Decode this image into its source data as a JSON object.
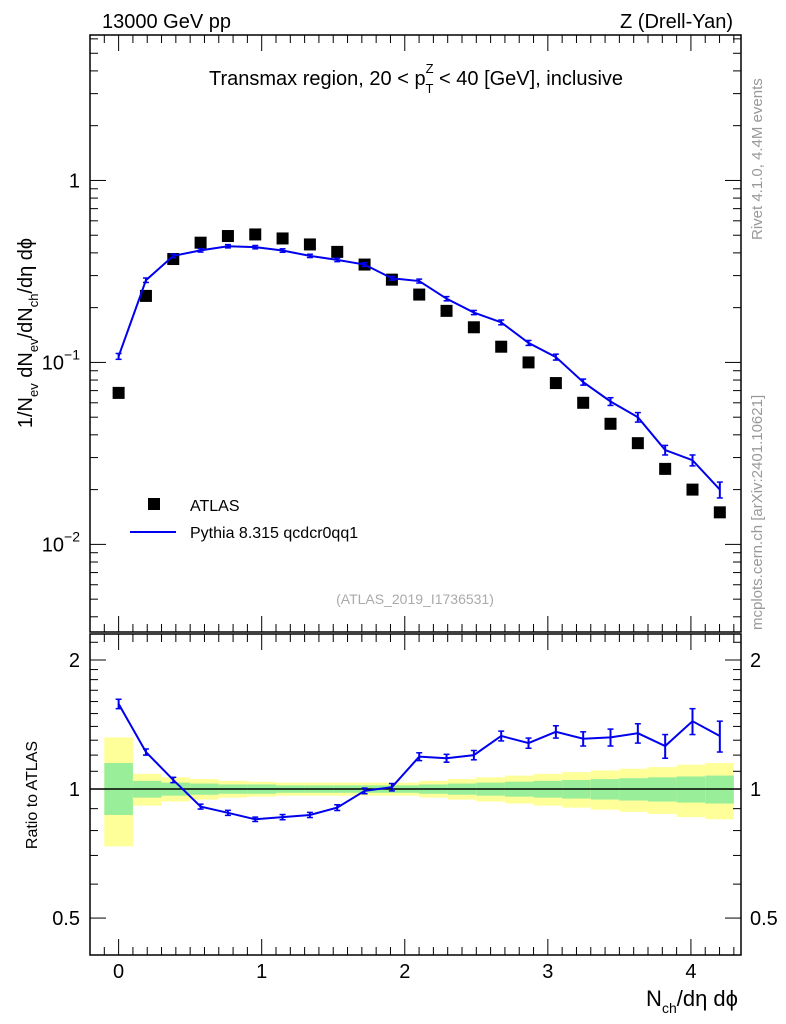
{
  "header": {
    "left": "13000 GeV pp",
    "right": "Z (Drell-Yan)"
  },
  "side_text": {
    "rivet": "Rivet 4.1.0,  4.4M events",
    "mcplots": "mcplots.cern.ch [arXiv:2401.10621]"
  },
  "chart_data": [
    {
      "type": "scatter",
      "panel": "main",
      "title": "Transmax region, 20 < p_T^Z < 40 [GeV], inclusive",
      "title_parts": {
        "pre": "Transmax region, 20 < p",
        "sup": "Z",
        "sub": "T",
        "post": " < 40 [GeV], inclusive"
      },
      "ylabel": "1/N_ev dN_ev/dN_ch/dη dϕ",
      "ylabel_parts": {
        "a": "1/N",
        "a_sub": "ev",
        "b": " dN",
        "b_sub": "ev",
        "c": "/dN",
        "c_sub": "ch",
        "d": "/dη dϕ"
      },
      "yscale": "log",
      "xlim": [
        -0.2,
        4.35
      ],
      "ylim": [
        0.0033,
        6.3
      ],
      "yticks": [
        {
          "value": 1,
          "label": "1"
        },
        {
          "value": 0.1,
          "label": "10",
          "exp": "−1"
        },
        {
          "value": 0.01,
          "label": "10",
          "exp": "−2"
        }
      ],
      "watermark": "(ATLAS_2019_I1736531)",
      "legend": {
        "position": "lower-left",
        "entries": [
          "ATLAS",
          "Pythia 8.315 qcdcr0qq1"
        ]
      },
      "series": [
        {
          "name": "ATLAS",
          "marker": "square",
          "color": "#000000",
          "x": [
            0.0,
            0.191,
            0.382,
            0.573,
            0.764,
            0.955,
            1.146,
            1.337,
            1.528,
            1.719,
            1.91,
            2.101,
            2.292,
            2.483,
            2.674,
            2.865,
            3.056,
            3.247,
            3.438,
            3.629,
            3.82,
            4.011,
            4.202
          ],
          "y": [
            0.068,
            0.232,
            0.37,
            0.455,
            0.495,
            0.505,
            0.48,
            0.445,
            0.405,
            0.345,
            0.285,
            0.236,
            0.192,
            0.156,
            0.122,
            0.1,
            0.077,
            0.06,
            0.046,
            0.036,
            0.026,
            0.02,
            0.015
          ]
        },
        {
          "name": "Pythia 8.315 qcdcr0qq1",
          "marker": "line",
          "color": "#0000ee",
          "x": [
            0.0,
            0.191,
            0.382,
            0.573,
            0.764,
            0.955,
            1.146,
            1.337,
            1.528,
            1.719,
            1.91,
            2.101,
            2.292,
            2.483,
            2.674,
            2.865,
            3.056,
            3.247,
            3.438,
            3.629,
            3.82,
            4.011,
            4.202
          ],
          "y": [
            0.108,
            0.283,
            0.385,
            0.413,
            0.435,
            0.43,
            0.412,
            0.385,
            0.366,
            0.345,
            0.29,
            0.28,
            0.224,
            0.188,
            0.166,
            0.128,
            0.107,
            0.078,
            0.061,
            0.05,
            0.033,
            0.029,
            0.02
          ],
          "yerr": [
            0.004,
            0.008,
            0.009,
            0.009,
            0.009,
            0.009,
            0.009,
            0.008,
            0.008,
            0.008,
            0.007,
            0.007,
            0.006,
            0.005,
            0.005,
            0.004,
            0.004,
            0.003,
            0.003,
            0.003,
            0.002,
            0.002,
            0.002
          ]
        }
      ]
    },
    {
      "type": "line",
      "panel": "ratio",
      "ylabel": "Ratio to ATLAS",
      "xlabel": "N_ch/dη dϕ",
      "xlabel_parts": {
        "a": "N",
        "a_sub": "ch",
        "b": "/dη dϕ"
      },
      "xlim": [
        -0.2,
        4.35
      ],
      "ylim": [
        0.41,
        2.3
      ],
      "ylim_scale": "log",
      "yticks": [
        {
          "value": 0.5,
          "label": "0.5"
        },
        {
          "value": 1,
          "label": "1"
        },
        {
          "value": 2,
          "label": "2"
        }
      ],
      "xticks": [
        {
          "value": 0,
          "label": "0"
        },
        {
          "value": 1,
          "label": "1"
        },
        {
          "value": 2,
          "label": "2"
        },
        {
          "value": 3,
          "label": "3"
        },
        {
          "value": 4,
          "label": "4"
        }
      ],
      "reference_line": 1,
      "bands": {
        "edges": [
          -0.1,
          0.1,
          0.3,
          0.5,
          0.7,
          0.9,
          1.1,
          1.3,
          1.5,
          1.7,
          1.9,
          2.1,
          2.3,
          2.5,
          2.7,
          2.9,
          3.1,
          3.3,
          3.5,
          3.7,
          3.9,
          4.1,
          4.3
        ],
        "green_low": [
          0.87,
          0.955,
          0.965,
          0.97,
          0.975,
          0.975,
          0.98,
          0.98,
          0.98,
          0.98,
          0.98,
          0.975,
          0.97,
          0.965,
          0.96,
          0.955,
          0.95,
          0.945,
          0.94,
          0.935,
          0.93,
          0.925,
          0.92
        ],
        "green_high": [
          1.15,
          1.045,
          1.035,
          1.03,
          1.025,
          1.025,
          1.02,
          1.02,
          1.02,
          1.02,
          1.02,
          1.025,
          1.03,
          1.035,
          1.04,
          1.045,
          1.05,
          1.055,
          1.06,
          1.065,
          1.07,
          1.075,
          1.08
        ],
        "yellow_low": [
          0.735,
          0.915,
          0.935,
          0.945,
          0.955,
          0.96,
          0.965,
          0.965,
          0.965,
          0.965,
          0.965,
          0.955,
          0.945,
          0.935,
          0.925,
          0.915,
          0.905,
          0.895,
          0.885,
          0.875,
          0.86,
          0.85,
          0.835
        ],
        "yellow_high": [
          1.32,
          1.085,
          1.065,
          1.055,
          1.045,
          1.04,
          1.035,
          1.035,
          1.035,
          1.035,
          1.035,
          1.045,
          1.055,
          1.065,
          1.075,
          1.085,
          1.095,
          1.105,
          1.115,
          1.125,
          1.14,
          1.15,
          1.165
        ],
        "green_color": "#99ee99",
        "yellow_color": "#ffff99"
      },
      "series": [
        {
          "name": "Pythia 8.315 qcdcr0qq1 / ATLAS",
          "color": "#0000ee",
          "x": [
            0.0,
            0.191,
            0.382,
            0.573,
            0.764,
            0.955,
            1.146,
            1.337,
            1.528,
            1.719,
            1.91,
            2.101,
            2.292,
            2.483,
            2.674,
            2.865,
            3.056,
            3.247,
            3.438,
            3.629,
            3.82,
            4.011,
            4.202
          ],
          "y": [
            1.58,
            1.22,
            1.05,
            0.91,
            0.88,
            0.85,
            0.86,
            0.87,
            0.905,
            0.99,
            1.01,
            1.19,
            1.18,
            1.2,
            1.33,
            1.28,
            1.36,
            1.31,
            1.32,
            1.35,
            1.26,
            1.44,
            1.33
          ],
          "yerr": [
            0.04,
            0.02,
            0.015,
            0.012,
            0.012,
            0.01,
            0.012,
            0.012,
            0.014,
            0.015,
            0.02,
            0.025,
            0.025,
            0.03,
            0.035,
            0.035,
            0.045,
            0.05,
            0.06,
            0.07,
            0.08,
            0.1,
            0.11
          ]
        }
      ]
    }
  ]
}
